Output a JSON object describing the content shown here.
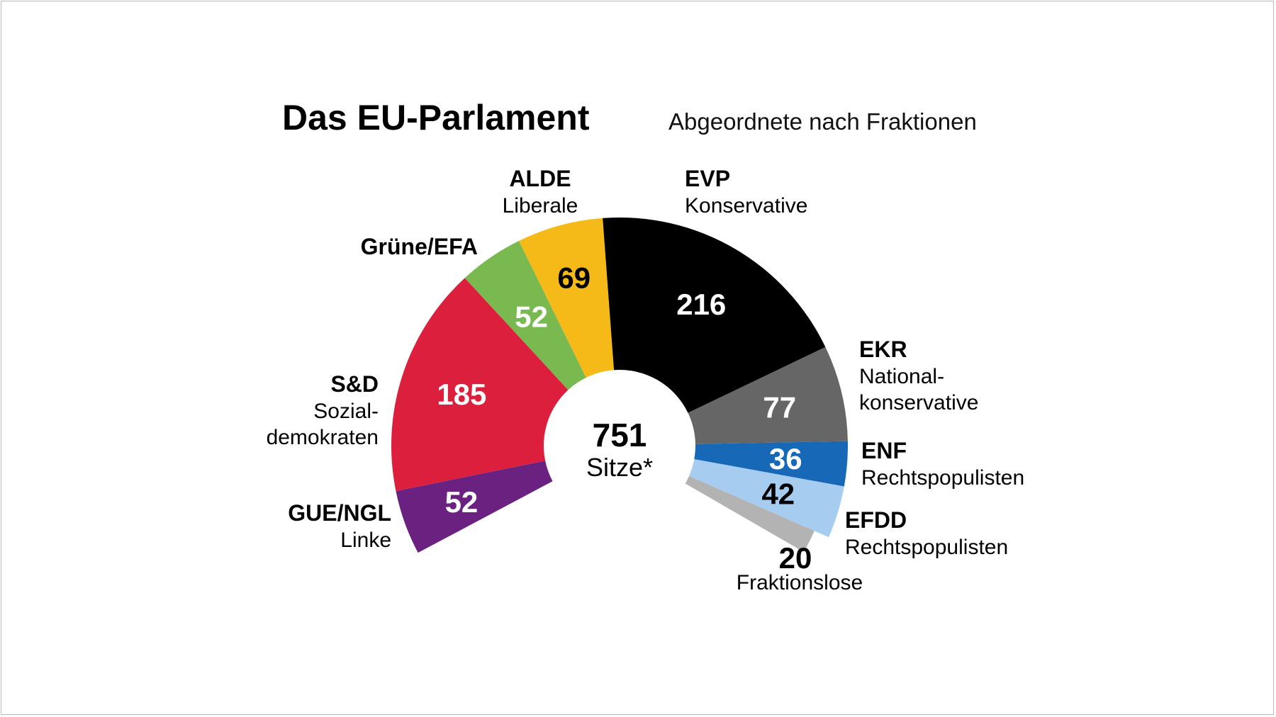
{
  "chart_data": {
    "type": "pie",
    "title": "Das EU-Parlament",
    "subtitle": "Abgeordnete nach Fraktionen",
    "total": {
      "value": "751",
      "label": "Sitze*"
    },
    "series": [
      {
        "abbr": "GUE/NGL",
        "desc": [
          "Linke"
        ],
        "value": 52,
        "color": "#6a2180",
        "label_color": "#ffffff"
      },
      {
        "abbr": "S&D",
        "desc": [
          "Sozial-",
          "demokraten"
        ],
        "value": 185,
        "color": "#dc1f3c",
        "label_color": "#ffffff"
      },
      {
        "abbr": "Grüne/EFA",
        "desc": [],
        "value": 52,
        "color": "#7ab850",
        "label_color": "#ffffff"
      },
      {
        "abbr": "ALDE",
        "desc": [
          "Liberale"
        ],
        "value": 69,
        "color": "#f5b918",
        "label_color": "#000000"
      },
      {
        "abbr": "EVP",
        "desc": [
          "Konservative"
        ],
        "value": 216,
        "color": "#000000",
        "label_color": "#ffffff"
      },
      {
        "abbr": "EKR",
        "desc": [
          "National-",
          "konservative"
        ],
        "value": 77,
        "color": "#666666",
        "label_color": "#ffffff"
      },
      {
        "abbr": "ENF",
        "desc": [
          "Rechtspopulisten"
        ],
        "value": 36,
        "color": "#1769b8",
        "label_color": "#ffffff"
      },
      {
        "abbr": "EFDD",
        "desc": [
          "Rechtspopulisten"
        ],
        "value": 42,
        "color": "#a6cdf0",
        "label_color": "#000000"
      },
      {
        "abbr": "",
        "desc": [
          "Fraktionslose"
        ],
        "value": 20,
        "color": "#b3b3b3",
        "label_color": "#000000"
      }
    ]
  }
}
